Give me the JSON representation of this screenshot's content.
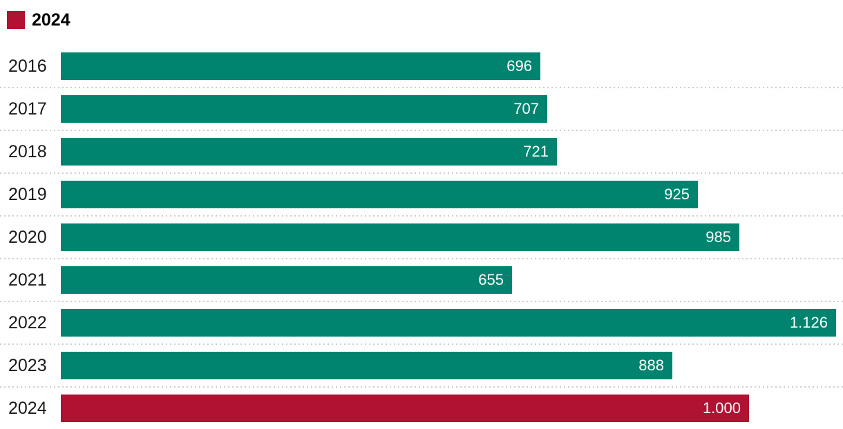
{
  "legend": {
    "label": "2024",
    "swatch_color": "#b01232"
  },
  "colors": {
    "bar_default": "#00846f",
    "bar_highlight": "#b01232",
    "category_text": "#1a1a1a",
    "value_text": "#ffffff",
    "separator": "#cccccc",
    "background": "#ffffff"
  },
  "chart_data": {
    "type": "bar",
    "orientation": "horizontal",
    "title": "",
    "xlabel": "",
    "ylabel": "",
    "xlim": [
      0,
      1126
    ],
    "grid": false,
    "legend_position": "top-left",
    "legend_entries": [
      "2024"
    ],
    "categories": [
      "2016",
      "2017",
      "2018",
      "2019",
      "2020",
      "2021",
      "2022",
      "2023",
      "2024"
    ],
    "values": [
      696,
      707,
      721,
      925,
      985,
      655,
      1126,
      888,
      1000
    ],
    "value_labels": [
      "696",
      "707",
      "721",
      "925",
      "985",
      "655",
      "1.126",
      "888",
      "1.000"
    ],
    "highlighted_category": "2024"
  }
}
